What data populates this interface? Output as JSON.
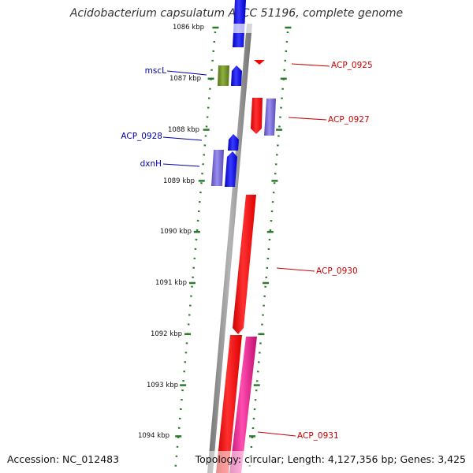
{
  "title": "Acidobacterium capsulatum ATCC 51196, complete genome",
  "footer": {
    "accession": "Accession: NC_012483",
    "summary": "Topology: circular; Length: 4,127,356 bp; Genes: 3,425"
  },
  "colors": {
    "backbone": "#888888",
    "left_gene_label": "#0000aa",
    "right_gene_label": "#cc0000",
    "tick": "#2a7a2a",
    "blue_gene": "#0000ee",
    "red_gene": "#ff0000",
    "purple_gene": "#6a5acd",
    "olive_gene": "#6b8e23",
    "pink_gene": "#e0208a"
  },
  "scale": {
    "tick_labels": [
      "1086 kbp",
      "1087 kbp",
      "1088 kbp",
      "1089 kbp",
      "1090 kbp",
      "1091 kbp",
      "1092 kbp",
      "1093 kbp",
      "1094 kbp"
    ]
  },
  "gene_labels": {
    "left": [
      "mscL",
      "ACP_0928",
      "dxnH"
    ],
    "right": [
      "ACP_0925",
      "ACP_0927",
      "ACP_0930",
      "ACP_0931"
    ]
  }
}
